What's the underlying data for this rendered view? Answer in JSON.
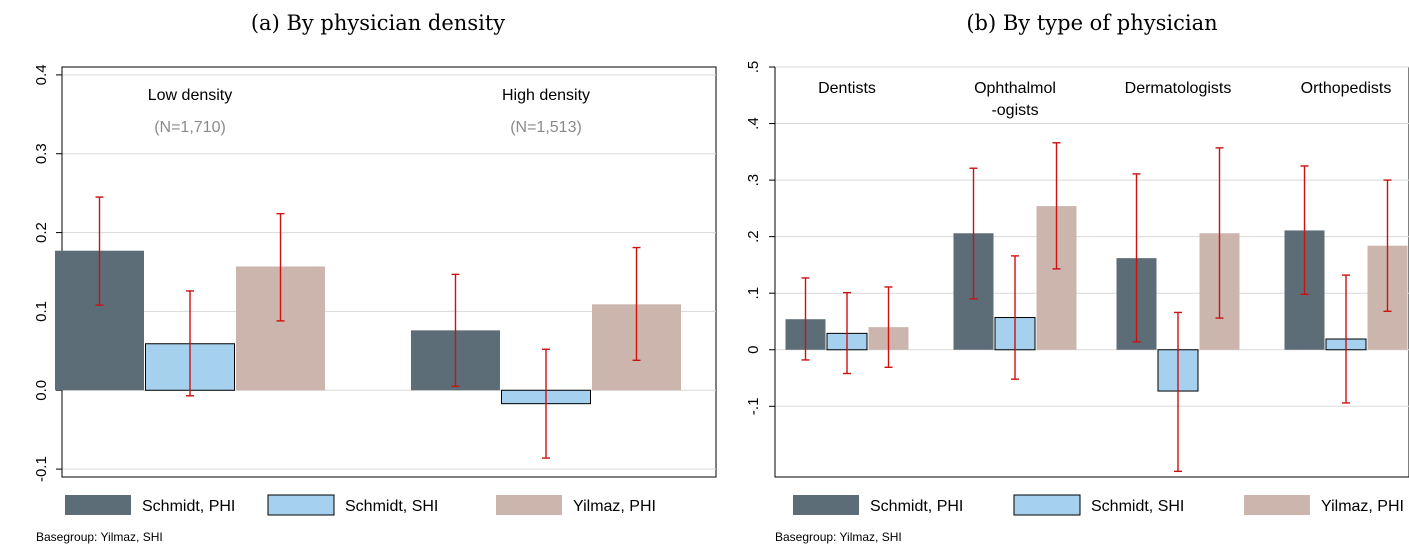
{
  "colors": {
    "Schmidt, PHI": "#5d6d77",
    "Schmidt, SHI": "#a6d1ee",
    "Yilmaz, PHI": "#cbb5ad",
    "ci": "#cc1111",
    "grid": "#d9d9d9"
  },
  "chart_data": [
    {
      "type": "bar",
      "title": "(a) By physician density",
      "series_names": [
        "Schmidt, PHI",
        "Schmidt, SHI",
        "Yilmaz, PHI"
      ],
      "groups": [
        {
          "label_lines": [
            "Low density"
          ],
          "n": "(N=1,710)",
          "bars": [
            {
              "series": "Schmidt, PHI",
              "value": 0.177,
              "ci": [
                0.108,
                0.245
              ]
            },
            {
              "series": "Schmidt, SHI",
              "value": 0.059,
              "ci": [
                -0.007,
                0.126
              ]
            },
            {
              "series": "Yilmaz, PHI",
              "value": 0.157,
              "ci": [
                0.088,
                0.224
              ]
            }
          ]
        },
        {
          "label_lines": [
            "High density"
          ],
          "n": "(N=1,513)",
          "bars": [
            {
              "series": "Schmidt, PHI",
              "value": 0.076,
              "ci": [
                0.005,
                0.147
              ]
            },
            {
              "series": "Schmidt, SHI",
              "value": -0.017,
              "ci": [
                -0.086,
                0.052
              ]
            },
            {
              "series": "Yilmaz, PHI",
              "value": 0.109,
              "ci": [
                0.038,
                0.181
              ]
            }
          ]
        }
      ],
      "yticks": [
        -0.1,
        0.0,
        0.1,
        0.2,
        0.3,
        0.4
      ],
      "ytick_labels": [
        "-0.1",
        "0.0",
        "0.1",
        "0.2",
        "0.3",
        "0.4"
      ],
      "ylim": [
        -0.11,
        0.41
      ],
      "legend": [
        "Schmidt, PHI",
        "Schmidt, SHI",
        "Yilmaz, PHI"
      ],
      "note": "Basegroup: Yilmaz, SHI"
    },
    {
      "type": "bar",
      "title": "(b) By type of physician",
      "series_names": [
        "Schmidt, PHI",
        "Schmidt, SHI",
        "Yilmaz, PHI"
      ],
      "groups": [
        {
          "label_lines": [
            "Dentists"
          ],
          "bars": [
            {
              "series": "Schmidt, PHI",
              "value": 0.054,
              "ci": [
                -0.018,
                0.127
              ]
            },
            {
              "series": "Schmidt, SHI",
              "value": 0.029,
              "ci": [
                -0.042,
                0.101
              ]
            },
            {
              "series": "Yilmaz, PHI",
              "value": 0.04,
              "ci": [
                -0.031,
                0.111
              ]
            }
          ]
        },
        {
          "label_lines": [
            "Ophthalmol",
            "-ogists"
          ],
          "bars": [
            {
              "series": "Schmidt, PHI",
              "value": 0.206,
              "ci": [
                0.09,
                0.321
              ]
            },
            {
              "series": "Schmidt, SHI",
              "value": 0.057,
              "ci": [
                -0.052,
                0.166
              ]
            },
            {
              "series": "Yilmaz, PHI",
              "value": 0.254,
              "ci": [
                0.143,
                0.366
              ]
            }
          ]
        },
        {
          "label_lines": [
            "Dermatologists"
          ],
          "bars": [
            {
              "series": "Schmidt, PHI",
              "value": 0.162,
              "ci": [
                0.014,
                0.311
              ]
            },
            {
              "series": "Schmidt, SHI",
              "value": -0.073,
              "ci": [
                -0.215,
                0.066
              ]
            },
            {
              "series": "Yilmaz, PHI",
              "value": 0.206,
              "ci": [
                0.056,
                0.357
              ]
            }
          ]
        },
        {
          "label_lines": [
            "Orthopedists"
          ],
          "bars": [
            {
              "series": "Schmidt, PHI",
              "value": 0.211,
              "ci": [
                0.098,
                0.325
              ]
            },
            {
              "series": "Schmidt, SHI",
              "value": 0.019,
              "ci": [
                -0.094,
                0.132
              ]
            },
            {
              "series": "Yilmaz, PHI",
              "value": 0.184,
              "ci": [
                0.068,
                0.3
              ]
            }
          ]
        }
      ],
      "yticks": [
        -0.1,
        0,
        0.1,
        0.2,
        0.3,
        0.4,
        0.5
      ],
      "ytick_labels": [
        "-.1",
        "0",
        ".1",
        ".2",
        ".3",
        ".4",
        ".5"
      ],
      "ylim": [
        -0.225,
        0.5
      ],
      "legend": [
        "Schmidt, PHI",
        "Schmidt, SHI",
        "Yilmaz, PHI"
      ],
      "note": "Basegroup: Yilmaz, SHI"
    }
  ]
}
